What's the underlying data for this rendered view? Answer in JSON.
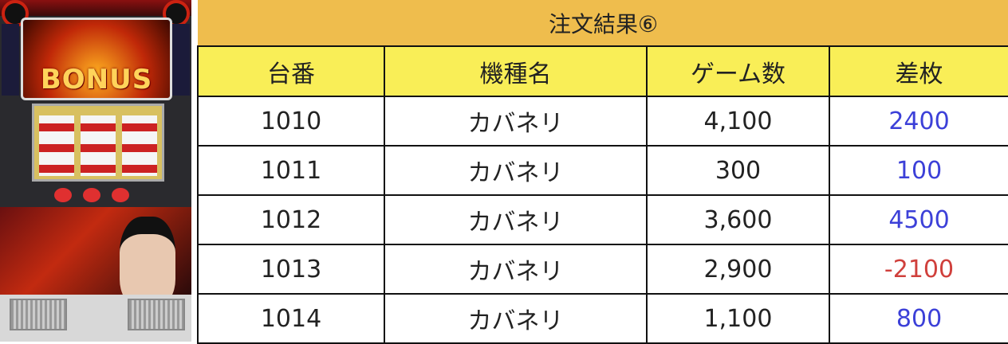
{
  "title": "注文結果⑥",
  "machine_image": {
    "logo_text": "BONUS"
  },
  "columns": [
    "台番",
    "機種名",
    "ゲーム数",
    "差枚"
  ],
  "rows": [
    {
      "number": "1010",
      "model": "カバネリ",
      "games": "4,100",
      "diff": "2400",
      "sign": "positive"
    },
    {
      "number": "1011",
      "model": "カバネリ",
      "games": "300",
      "diff": "100",
      "sign": "positive"
    },
    {
      "number": "1012",
      "model": "カバネリ",
      "games": "3,600",
      "diff": "4500",
      "sign": "positive"
    },
    {
      "number": "1013",
      "model": "カバネリ",
      "games": "2,900",
      "diff": "-2100",
      "sign": "negative"
    },
    {
      "number": "1014",
      "model": "カバネリ",
      "games": "1,100",
      "diff": "800",
      "sign": "positive"
    }
  ],
  "colors": {
    "title_bg": "#efbd4d",
    "header_bg": "#f9ee57",
    "positive": "#3c40d8",
    "negative": "#d0403c"
  }
}
